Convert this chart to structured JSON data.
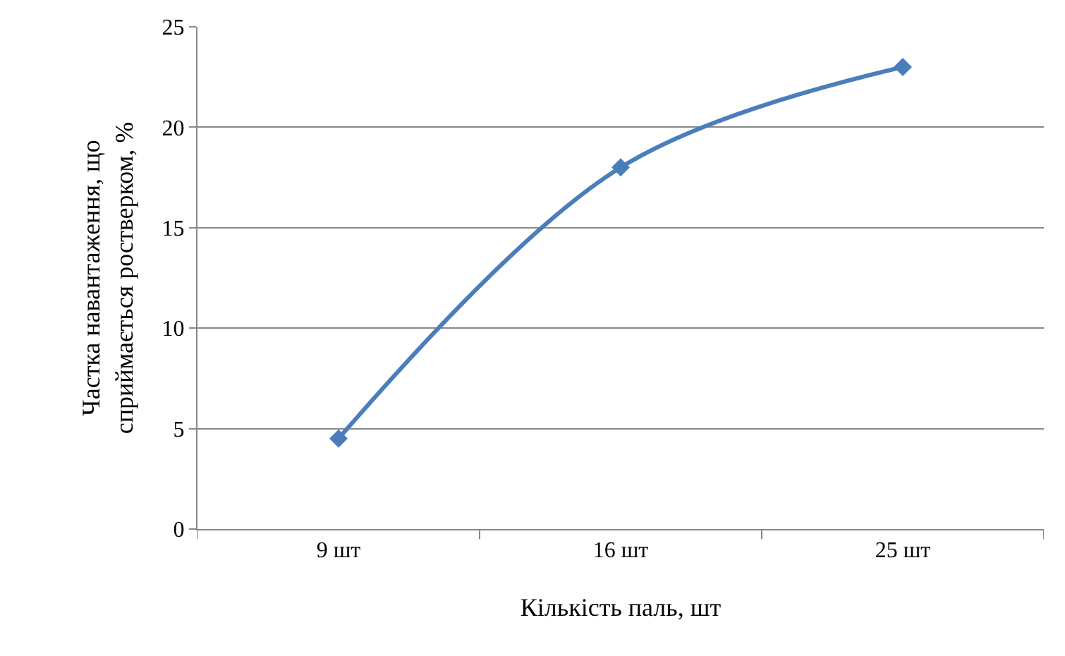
{
  "chart_data": {
    "type": "line",
    "xlabel": "Кількість паль, шт",
    "ylabel": "Частка навантаження, що\nсприймається ростверком, %",
    "categories": [
      "9 шт",
      "16 шт",
      "25 шт"
    ],
    "series": [
      {
        "color": "#4a7ebb",
        "values": [
          4.5,
          18,
          23
        ]
      }
    ],
    "ylim": [
      0,
      25
    ],
    "yticks": [
      0,
      5,
      10,
      15,
      20,
      25
    ],
    "grid": "y",
    "marker": "diamond",
    "line_style": "solid",
    "legend": false
  }
}
